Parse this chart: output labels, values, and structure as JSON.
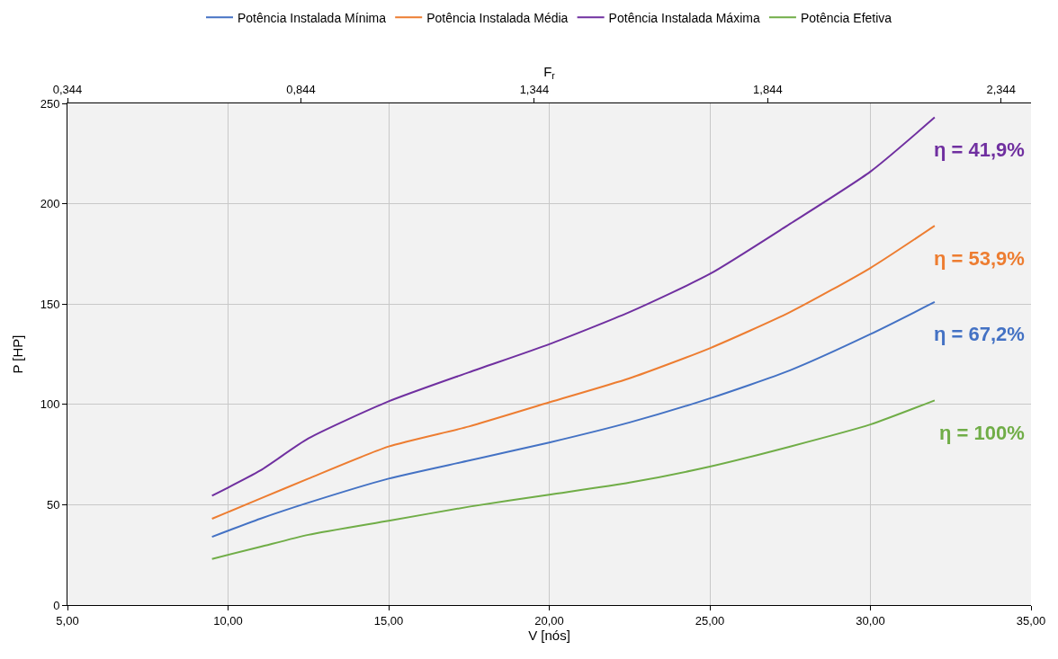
{
  "chart_data": {
    "type": "line",
    "xlabel": "V [nós]",
    "ylabel": "P [HP]",
    "x2label": "F$_{r}$",
    "x": [
      9.5,
      11,
      12.5,
      15,
      17.5,
      20,
      22.5,
      25,
      27.5,
      30,
      32
    ],
    "series": [
      {
        "name": "Potência Instalada Mínima",
        "color": "#4472c4",
        "values": [
          34,
          43,
          51,
          63,
          72,
          81,
          91,
          103,
          117,
          135,
          151
        ]
      },
      {
        "name": "Potência Instalada Média",
        "color": "#ed7d31",
        "values": [
          43,
          53,
          63,
          79,
          89,
          101,
          113,
          128,
          146,
          168,
          189
        ]
      },
      {
        "name": "Potência Instalada Máxima",
        "color": "#7030a0",
        "values": [
          54.5,
          67,
          83,
          101.5,
          116,
          130,
          146,
          165,
          190,
          216,
          243
        ]
      },
      {
        "name": "Potência Efetiva",
        "color": "#70ad47",
        "values": [
          23,
          29,
          35,
          42,
          49,
          55,
          61,
          69,
          79,
          90,
          102
        ]
      }
    ],
    "annotations": [
      "η = 67,2%",
      "η = 53,9%",
      "η = 41,9%",
      "η = 100%"
    ],
    "xlim": [
      5,
      35
    ],
    "xticks": [
      {
        "value": 5,
        "label": "5,00"
      },
      {
        "value": 10,
        "label": "10,00"
      },
      {
        "value": 15,
        "label": "15,00"
      },
      {
        "value": 20,
        "label": "20,00"
      },
      {
        "value": 25,
        "label": "25,00"
      },
      {
        "value": 30,
        "label": "30,00"
      },
      {
        "value": 35,
        "label": "35,00"
      }
    ],
    "x2lim": [
      0.344,
      2.408
    ],
    "x2ticks": [
      {
        "value": 0.344,
        "label": "0,344"
      },
      {
        "value": 0.844,
        "label": "0,844"
      },
      {
        "value": 1.344,
        "label": "1,344"
      },
      {
        "value": 1.844,
        "label": "1,844"
      },
      {
        "value": 2.344,
        "label": "2,344"
      }
    ],
    "ylim": [
      0,
      250
    ],
    "yticks": [
      0,
      50,
      100,
      150,
      200,
      250
    ],
    "grid": true,
    "legend": "top",
    "marker": "none",
    "line_style": "solid"
  }
}
